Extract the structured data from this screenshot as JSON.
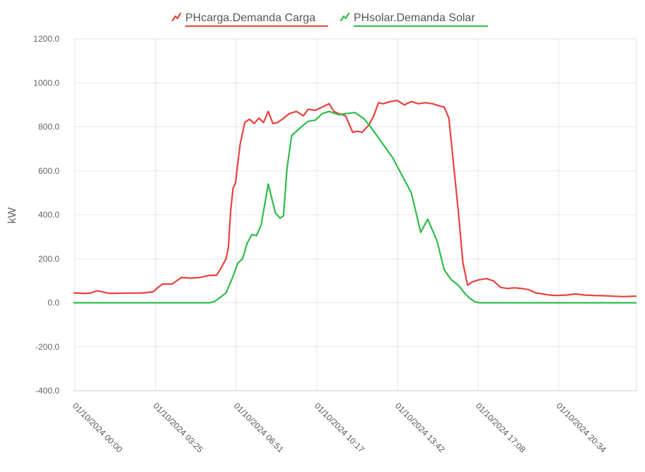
{
  "chart_data": {
    "type": "line",
    "ylabel": "kW",
    "ylim": [
      -400,
      1200
    ],
    "yticks": [
      "1200.0",
      "1000.0",
      "800.0",
      "600.0",
      "400.0",
      "200.0",
      "0.0",
      "-200.0",
      "-400.0"
    ],
    "xlim": [
      0,
      24
    ],
    "xtick_labels": [
      "01/10/2024 00:00",
      "01/10/2024 03:25",
      "01/10/2024 06:51",
      "01/10/2024 10:17",
      "01/10/2024 13:42",
      "01/10/2024 17:08",
      "01/10/2024 20:34"
    ],
    "grid": true,
    "legend_position": "top-center",
    "series": [
      {
        "name": "PHcarga.Demanda Carga",
        "color": "#e8413f",
        "x": [
          0,
          0.5,
          0.75,
          1.0,
          1.2,
          1.5,
          1.8,
          2.2,
          2.6,
          3.0,
          3.4,
          3.6,
          3.8,
          4.2,
          4.6,
          5.0,
          5.4,
          5.8,
          6.1,
          6.3,
          6.5,
          6.6,
          6.7,
          6.8,
          6.9,
          7.1,
          7.3,
          7.5,
          7.7,
          7.9,
          8.1,
          8.3,
          8.5,
          8.7,
          8.9,
          9.2,
          9.5,
          9.8,
          10.0,
          10.3,
          10.6,
          10.9,
          11.1,
          11.3,
          11.6,
          11.9,
          12.1,
          12.3,
          12.6,
          12.8,
          13.0,
          13.2,
          13.5,
          13.8,
          14.1,
          14.4,
          14.7,
          15.0,
          15.3,
          15.6,
          15.8,
          16.0,
          16.2,
          16.4,
          16.6,
          16.8,
          17.0,
          17.3,
          17.6,
          17.9,
          18.2,
          18.5,
          18.8,
          19.1,
          19.4,
          19.7,
          20.0,
          20.3,
          20.6,
          21.0,
          21.4,
          21.8,
          22.2,
          22.6,
          23.0,
          23.4,
          24.0
        ],
        "values": [
          45,
          42,
          45,
          55,
          50,
          43,
          43,
          44,
          44,
          45,
          50,
          70,
          85,
          85,
          115,
          112,
          115,
          125,
          125,
          160,
          200,
          250,
          420,
          520,
          545,
          720,
          820,
          835,
          815,
          840,
          820,
          870,
          815,
          820,
          835,
          860,
          870,
          850,
          880,
          875,
          890,
          905,
          870,
          860,
          850,
          775,
          780,
          775,
          810,
          850,
          910,
          905,
          915,
          920,
          900,
          915,
          905,
          910,
          905,
          895,
          890,
          840,
          630,
          420,
          180,
          80,
          95,
          105,
          110,
          100,
          70,
          65,
          68,
          65,
          60,
          45,
          40,
          35,
          33,
          35,
          40,
          35,
          33,
          32,
          30,
          28,
          30
        ]
      },
      {
        "name": "PHsolar.Demanda Solar",
        "color": "#2ebc4a",
        "x": [
          0,
          1,
          2,
          3,
          4,
          5,
          5.6,
          5.8,
          6.0,
          6.2,
          6.5,
          6.8,
          7.0,
          7.2,
          7.4,
          7.6,
          7.8,
          8.0,
          8.3,
          8.6,
          8.8,
          8.95,
          9.1,
          9.3,
          9.6,
          10.0,
          10.3,
          10.6,
          10.9,
          11.3,
          11.6,
          12.0,
          12.4,
          12.8,
          13.2,
          13.6,
          14.0,
          14.4,
          14.8,
          15.1,
          15.3,
          15.5,
          15.8,
          16.1,
          16.4,
          16.7,
          16.9,
          17.1,
          17.3,
          17.5,
          18.0,
          19.0,
          20.0,
          21.0,
          22.0,
          23.0,
          24.0
        ],
        "values": [
          0,
          0,
          0,
          0,
          0,
          0,
          0,
          0,
          5,
          20,
          45,
          120,
          180,
          200,
          270,
          310,
          305,
          355,
          540,
          410,
          385,
          395,
          610,
          760,
          790,
          825,
          830,
          860,
          870,
          855,
          860,
          865,
          835,
          780,
          720,
          660,
          580,
          500,
          320,
          380,
          330,
          280,
          150,
          105,
          80,
          40,
          20,
          5,
          0,
          0,
          0,
          0,
          0,
          0,
          0,
          0,
          0
        ]
      }
    ]
  }
}
